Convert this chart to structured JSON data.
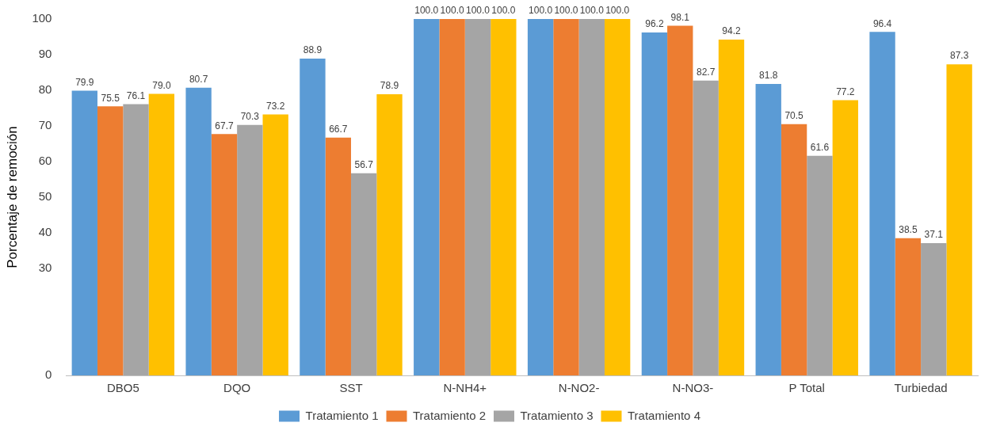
{
  "chart_data": {
    "type": "bar",
    "ylabel": "Porcentaje de remoción",
    "categories": [
      "DBO5",
      "DQO",
      "SST",
      "N-NH4+",
      "N-NO2-",
      "N-NO3-",
      "P Total",
      "Turbiedad"
    ],
    "series": [
      {
        "name": "Tratamiento 1",
        "color": "#5b9bd5",
        "values": [
          79.9,
          80.7,
          88.9,
          100.0,
          100.0,
          96.2,
          81.8,
          96.4
        ],
        "value_labels": [
          "79.9",
          "80.7",
          "88.9",
          "100.0",
          "100.0",
          "96.2",
          "81.8",
          "96.4"
        ]
      },
      {
        "name": "Tratamiento 2",
        "color": "#ed7d31",
        "values": [
          75.5,
          67.7,
          66.7,
          100.0,
          100.0,
          98.1,
          70.5,
          38.5
        ],
        "value_labels": [
          "75.5",
          "67.7",
          "66.7",
          "100.0",
          "100.0",
          "98.1",
          "70.5",
          "38.5"
        ]
      },
      {
        "name": "Tratamiento 3",
        "color": "#a5a5a5",
        "values": [
          76.1,
          70.3,
          56.7,
          100.0,
          100.0,
          82.7,
          61.6,
          37.1
        ],
        "value_labels": [
          "76.1",
          "70.3",
          "56.7",
          "100.0",
          "100.0",
          "82.7",
          "61.6",
          "37.1"
        ]
      },
      {
        "name": "Tratamiento 4",
        "color": "#ffc000",
        "values": [
          79.0,
          73.2,
          78.9,
          100.0,
          100.0,
          94.2,
          77.2,
          87.3
        ],
        "value_labels": [
          "79.0",
          "73.2",
          "78.9",
          "100.0",
          "100.0",
          "94.2",
          "77.2",
          "87.3"
        ]
      }
    ],
    "ylim": [
      0,
      100
    ],
    "yticks": [
      0,
      30,
      40,
      50,
      60,
      70,
      80,
      90,
      100
    ],
    "grid": false,
    "legend": "bottom"
  }
}
